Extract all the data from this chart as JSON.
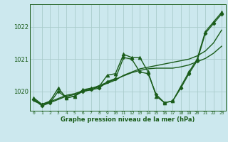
{
  "title": "Graphe pression niveau de la mer (hPa)",
  "bg_color": "#cce8ee",
  "grid_color": "#aacccc",
  "line_color": "#1a5c1a",
  "x_ticks": [
    0,
    1,
    2,
    3,
    4,
    5,
    6,
    7,
    8,
    9,
    10,
    11,
    12,
    13,
    14,
    15,
    16,
    17,
    18,
    19,
    20,
    21,
    22,
    23
  ],
  "y_ticks": [
    1020,
    1021,
    1022
  ],
  "ylim": [
    1019.4,
    1022.7
  ],
  "xlim": [
    -0.5,
    23.5
  ],
  "series": [
    {
      "x": [
        0,
        1,
        2,
        3,
        4,
        5,
        6,
        7,
        8,
        9,
        10,
        11,
        12,
        13,
        14,
        15,
        16,
        17,
        18,
        19,
        20,
        21,
        22,
        23
      ],
      "y": [
        1019.8,
        1019.6,
        1019.7,
        1020.1,
        1019.8,
        1019.85,
        1020.05,
        1020.1,
        1020.15,
        1020.5,
        1020.55,
        1021.15,
        1021.05,
        1021.05,
        1020.6,
        1019.85,
        1019.65,
        1019.7,
        1020.15,
        1020.6,
        1021.0,
        1021.85,
        1022.15,
        1022.45
      ],
      "marker": "^",
      "markersize": 3.5,
      "lw": 1.0
    },
    {
      "x": [
        0,
        1,
        2,
        3,
        4,
        5,
        6,
        7,
        8,
        9,
        10,
        11,
        12,
        13,
        14,
        15,
        16,
        17,
        18,
        19,
        20,
        21,
        22,
        23
      ],
      "y": [
        1019.75,
        1019.55,
        1019.65,
        1020.0,
        1019.8,
        1019.85,
        1020.0,
        1020.05,
        1020.1,
        1020.3,
        1020.4,
        1021.05,
        1021.0,
        1020.6,
        1020.55,
        1019.9,
        1019.65,
        1019.7,
        1020.1,
        1020.55,
        1020.95,
        1021.8,
        1022.1,
        1022.4
      ],
      "marker": "D",
      "markersize": 2.5,
      "lw": 1.0
    },
    {
      "x": [
        0,
        1,
        2,
        3,
        4,
        5,
        6,
        7,
        8,
        9,
        10,
        11,
        12,
        13,
        14,
        15,
        16,
        17,
        18,
        19,
        20,
        21,
        22,
        23
      ],
      "y": [
        1019.7,
        1019.6,
        1019.65,
        1019.75,
        1019.85,
        1019.9,
        1020.0,
        1020.05,
        1020.15,
        1020.25,
        1020.35,
        1020.5,
        1020.6,
        1020.7,
        1020.75,
        1020.8,
        1020.85,
        1020.9,
        1020.95,
        1021.0,
        1021.1,
        1021.25,
        1021.5,
        1021.9
      ],
      "marker": null,
      "lw": 1.0
    },
    {
      "x": [
        0,
        1,
        2,
        3,
        4,
        5,
        6,
        7,
        8,
        9,
        10,
        11,
        12,
        13,
        14,
        15,
        16,
        17,
        18,
        19,
        20,
        21,
        22,
        23
      ],
      "y": [
        1019.75,
        1019.6,
        1019.68,
        1019.78,
        1019.88,
        1019.93,
        1020.02,
        1020.08,
        1020.18,
        1020.28,
        1020.38,
        1020.48,
        1020.58,
        1020.65,
        1020.7,
        1020.72,
        1020.72,
        1020.72,
        1020.76,
        1020.82,
        1020.92,
        1021.02,
        1021.18,
        1021.4
      ],
      "marker": null,
      "lw": 1.0
    }
  ]
}
